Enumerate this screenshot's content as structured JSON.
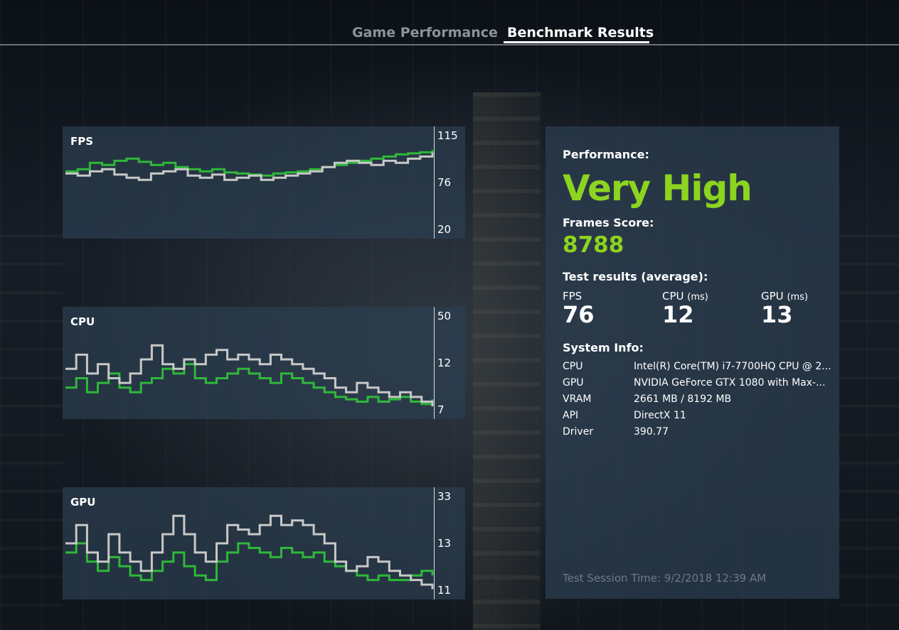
{
  "tabs": [
    {
      "label": "Game Performance",
      "active": false
    },
    {
      "label": "Benchmark Results",
      "active": true
    }
  ],
  "graphs": {
    "fps": {
      "title": "FPS",
      "axis": [
        "115",
        "76",
        "20"
      ]
    },
    "cpu": {
      "title": "CPU",
      "axis": [
        "50",
        "12",
        "7"
      ]
    },
    "gpu": {
      "title": "GPU",
      "axis": [
        "33",
        "13",
        "11"
      ]
    }
  },
  "chart_data": [
    {
      "type": "line",
      "title": "FPS",
      "ylim": [
        20,
        115
      ],
      "ticks": [
        115,
        76,
        20
      ],
      "series": [
        {
          "color": "#2fb83a",
          "values": [
            78,
            80,
            86,
            84,
            88,
            90,
            87,
            84,
            86,
            82,
            80,
            78,
            80,
            77,
            76,
            75,
            74,
            76,
            77,
            78,
            80,
            82,
            84,
            86,
            88,
            90,
            92,
            94,
            95,
            96,
            98
          ]
        },
        {
          "color": "#c8c8c8",
          "values": [
            76,
            74,
            78,
            80,
            75,
            72,
            70,
            76,
            78,
            80,
            74,
            72,
            75,
            70,
            72,
            74,
            70,
            72,
            74,
            76,
            78,
            82,
            86,
            88,
            86,
            84,
            88,
            86,
            90,
            92,
            96
          ]
        }
      ]
    },
    {
      "type": "line",
      "title": "CPU",
      "ylim": [
        7,
        50
      ],
      "ticks": [
        50,
        12,
        7
      ],
      "series": [
        {
          "color": "#2fb83a",
          "values": [
            18,
            22,
            16,
            20,
            24,
            18,
            16,
            20,
            22,
            26,
            24,
            28,
            22,
            20,
            22,
            24,
            26,
            24,
            22,
            20,
            24,
            22,
            20,
            18,
            16,
            14,
            13,
            12,
            14,
            12,
            13,
            14,
            12,
            11,
            13
          ]
        },
        {
          "color": "#c8c8c8",
          "values": [
            26,
            32,
            24,
            28,
            22,
            20,
            24,
            30,
            36,
            28,
            26,
            30,
            28,
            32,
            34,
            30,
            32,
            30,
            28,
            32,
            30,
            28,
            26,
            24,
            22,
            18,
            16,
            20,
            18,
            16,
            14,
            16,
            14,
            12,
            10
          ]
        }
      ]
    },
    {
      "type": "line",
      "title": "GPU",
      "ylim": [
        11,
        33
      ],
      "ticks": [
        33,
        13,
        11
      ],
      "series": [
        {
          "color": "#2fb83a",
          "values": [
            20,
            22,
            18,
            16,
            19,
            17,
            15,
            14,
            16,
            18,
            20,
            17,
            15,
            14,
            18,
            20,
            22,
            21,
            20,
            19,
            21,
            20,
            19,
            20,
            18,
            17,
            16,
            15,
            14,
            15,
            14,
            14,
            15,
            16,
            15
          ]
        },
        {
          "color": "#c8c8c8",
          "values": [
            22,
            26,
            20,
            18,
            24,
            20,
            18,
            16,
            20,
            24,
            28,
            24,
            20,
            18,
            22,
            26,
            25,
            24,
            26,
            28,
            26,
            27,
            26,
            24,
            22,
            18,
            16,
            17,
            19,
            18,
            16,
            15,
            14,
            13,
            12
          ]
        }
      ]
    }
  ],
  "results": {
    "performance_label": "Performance:",
    "performance_value": "Very High",
    "score_label": "Frames Score:",
    "score_value": "8788",
    "avg_label": "Test results (average):",
    "avg": {
      "fps_label": "FPS",
      "fps_value": "76",
      "cpu_label": "CPU",
      "cpu_unit": "(ms)",
      "cpu_value": "12",
      "gpu_label": "GPU",
      "gpu_unit": "(ms)",
      "gpu_value": "13"
    },
    "sysinfo_label": "System Info:",
    "sysinfo": [
      {
        "key": "CPU",
        "value": "Intel(R) Core(TM) i7-7700HQ CPU @ 2..."
      },
      {
        "key": "GPU",
        "value": "NVIDIA GeForce GTX 1080 with Max-..."
      },
      {
        "key": "VRAM",
        "value": "2661 MB / 8192 MB"
      },
      {
        "key": "API",
        "value": "DirectX 11"
      },
      {
        "key": "Driver",
        "value": "390.77"
      }
    ],
    "session": "Test Session Time: 9/2/2018 12:39 AM"
  }
}
